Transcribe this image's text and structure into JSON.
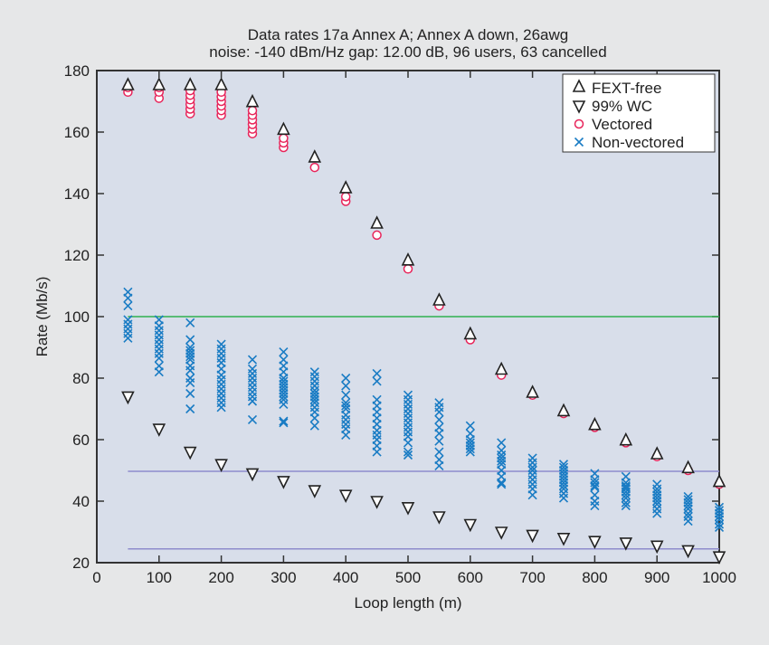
{
  "chart_data": {
    "type": "scatter",
    "title": "Data rates 17a Annex A; Annex A down, 26awg",
    "subtitle": "noise: -140 dBm/Hz gap: 12.00 dB, 96 users, 63 cancelled",
    "xlabel": "Loop length (m)",
    "ylabel": "Rate (Mb/s)",
    "xlim": [
      0,
      1000
    ],
    "ylim": [
      20,
      180
    ],
    "xticks": [
      "0",
      "100",
      "200",
      "300",
      "400",
      "500",
      "600",
      "700",
      "800",
      "900",
      "1000"
    ],
    "yticks": [
      "20",
      "40",
      "60",
      "80",
      "100",
      "120",
      "140",
      "160",
      "180"
    ],
    "legend_position": "top-right",
    "grid": false,
    "x": [
      50,
      100,
      150,
      200,
      250,
      300,
      350,
      400,
      450,
      500,
      550,
      600,
      650,
      700,
      750,
      800,
      850,
      900,
      950,
      1000
    ],
    "series": [
      {
        "name": "FEXT-free",
        "marker": "triangle-up",
        "color": "#222222",
        "values": [
          175,
          175,
          175,
          175,
          169.5,
          160.5,
          151.5,
          141.5,
          130,
          118,
          105,
          94,
          82.5,
          75,
          69,
          64.5,
          59.5,
          55,
          50.5,
          46
        ]
      },
      {
        "name": "99% WC",
        "marker": "triangle-down",
        "color": "#222222",
        "values": [
          74,
          63.5,
          56,
          52,
          49,
          46.5,
          43.5,
          42,
          40,
          38,
          35,
          32.5,
          30,
          29,
          28,
          27,
          26.5,
          25.5,
          24,
          22
        ]
      },
      {
        "name": "Vectored",
        "marker": "circle",
        "color": "#e8245a",
        "values": [
          [
            173,
            174.5
          ],
          [
            171,
            173,
            174.5
          ],
          [
            166,
            167.5,
            169,
            170.5,
            172,
            173.5
          ],
          [
            165.5,
            167,
            168.5,
            170,
            171.5,
            173
          ],
          [
            159.5,
            161,
            162.5,
            164,
            165.5,
            167
          ],
          [
            155,
            156.5,
            158
          ],
          [
            148.5
          ],
          [
            137.5,
            139
          ],
          [
            126.5
          ],
          [
            115.5
          ],
          [
            103.5
          ],
          [
            92.5
          ],
          [
            81
          ],
          [
            74.5
          ],
          [
            68.5
          ],
          [
            64
          ],
          [
            59
          ],
          [
            54.5
          ],
          [
            50
          ],
          [
            45.5
          ]
        ]
      },
      {
        "name": "Non-vectored",
        "marker": "x",
        "color": "#1a7cc4",
        "values": [
          [
            108,
            106,
            103.5,
            99,
            97.5,
            96,
            94.5,
            93
          ],
          [
            99,
            97,
            95.5,
            94,
            92.5,
            91,
            89.5,
            88,
            86.5,
            84,
            82
          ],
          [
            98,
            92.5,
            90,
            89,
            88,
            87,
            86,
            84,
            82.5,
            80,
            78.5,
            75,
            70
          ],
          [
            91,
            89.5,
            88,
            86.5,
            85,
            83,
            81,
            79.5,
            78,
            76.5,
            75,
            73.5,
            72,
            70.5
          ],
          [
            86,
            83,
            81.5,
            80,
            78.5,
            77,
            75.5,
            74,
            72.5,
            66.5
          ],
          [
            88.5,
            86,
            84,
            82,
            80,
            79,
            78,
            77,
            76,
            75,
            74,
            73,
            71.5,
            66,
            65.5
          ],
          [
            82,
            80.5,
            79,
            77.5,
            76,
            75,
            74,
            73,
            72,
            70.5,
            69,
            67,
            64.5
          ],
          [
            80,
            77.5,
            74.5,
            72,
            71,
            70,
            68,
            66.5,
            65,
            63.5,
            61.5
          ],
          [
            81.5,
            79,
            73,
            71,
            69,
            67,
            65,
            63,
            61.5,
            60,
            58,
            56
          ],
          [
            74.5,
            73,
            71.5,
            70,
            68.5,
            67,
            65.5,
            64,
            62.5,
            61,
            59,
            56,
            55
          ],
          [
            72,
            70.5,
            69,
            66.5,
            64,
            62,
            59.5,
            56,
            53.5,
            51.5
          ],
          [
            64.5,
            62,
            60,
            59,
            58,
            57,
            56
          ],
          [
            59,
            56.5,
            55,
            54,
            53,
            52,
            50,
            48,
            46,
            45.5
          ],
          [
            54,
            52.5,
            51,
            50,
            48.5,
            47,
            45.5,
            44,
            42
          ],
          [
            52,
            51,
            50,
            49,
            48,
            47,
            46,
            45,
            44,
            42.5,
            41
          ],
          [
            49,
            47,
            46,
            45,
            44.5,
            42,
            40,
            38.5
          ],
          [
            48,
            46,
            45,
            44.5,
            44,
            43,
            42,
            41,
            39.5,
            38.5
          ],
          [
            45.5,
            44,
            43,
            42,
            41,
            40,
            39,
            37.5,
            36
          ],
          [
            41.5,
            40.5,
            39.5,
            38.5,
            37.5,
            36,
            35,
            33.5
          ],
          [
            38,
            37,
            36,
            35,
            34,
            32.5,
            31.5
          ]
        ]
      }
    ],
    "reference_lines": [
      {
        "y": 100,
        "x": [
          50,
          1000
        ],
        "color": "#2fb04f"
      },
      {
        "y": 49.7,
        "x": [
          50,
          1000
        ],
        "color": "#8e8ccc"
      },
      {
        "y": 24.5,
        "x": [
          50,
          1000
        ],
        "color": "#8e8ccc"
      }
    ],
    "colors": {
      "plot_bg": "#d8deea",
      "figure_bg": "#e6e7e8"
    }
  }
}
